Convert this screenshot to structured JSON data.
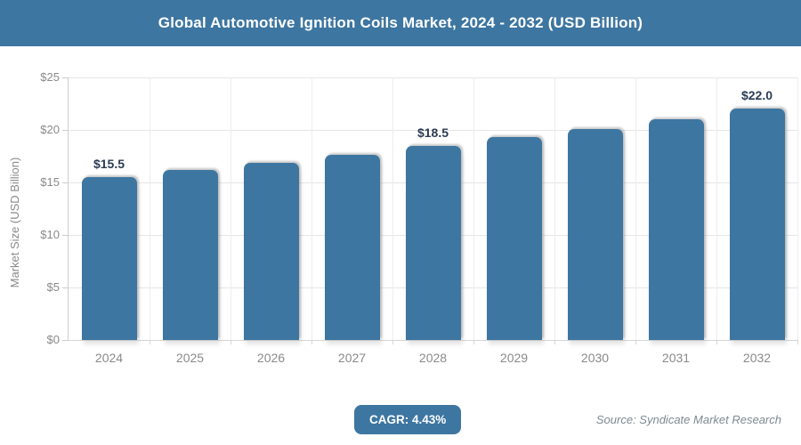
{
  "header": {
    "title": "Global Automotive Ignition Coils Market, 2024 - 2032 (USD Billion)"
  },
  "chart_data": {
    "type": "bar",
    "title": "Global Automotive Ignition Coils Market, 2024 - 2032 (USD Billion)",
    "categories": [
      "2024",
      "2025",
      "2026",
      "2027",
      "2028",
      "2029",
      "2030",
      "2031",
      "2032"
    ],
    "values": [
      15.5,
      16.2,
      16.9,
      17.6,
      18.5,
      19.3,
      20.1,
      21.0,
      22.0
    ],
    "data_labels": [
      "$15.5",
      null,
      null,
      null,
      "$18.5",
      null,
      null,
      null,
      "$22.0"
    ],
    "xlabel": "",
    "ylabel": "Market Size (USD Billion)",
    "ylim": [
      0,
      25
    ],
    "yticks": [
      0,
      5,
      10,
      15,
      20,
      25
    ],
    "ytick_labels": [
      "$0",
      "$5",
      "$10",
      "$15",
      "$20",
      "$25"
    ],
    "grid": true,
    "legend": false
  },
  "footer": {
    "cagr_label": "CAGR: 4.43%",
    "source": "Source: Syndicate Market Research"
  },
  "colors": {
    "accent": "#3d76a1",
    "bar": "#3d76a1",
    "data_label": "#2b3c53",
    "axis_text": "#8a8a8a",
    "gridline": "#e6e6e6"
  }
}
